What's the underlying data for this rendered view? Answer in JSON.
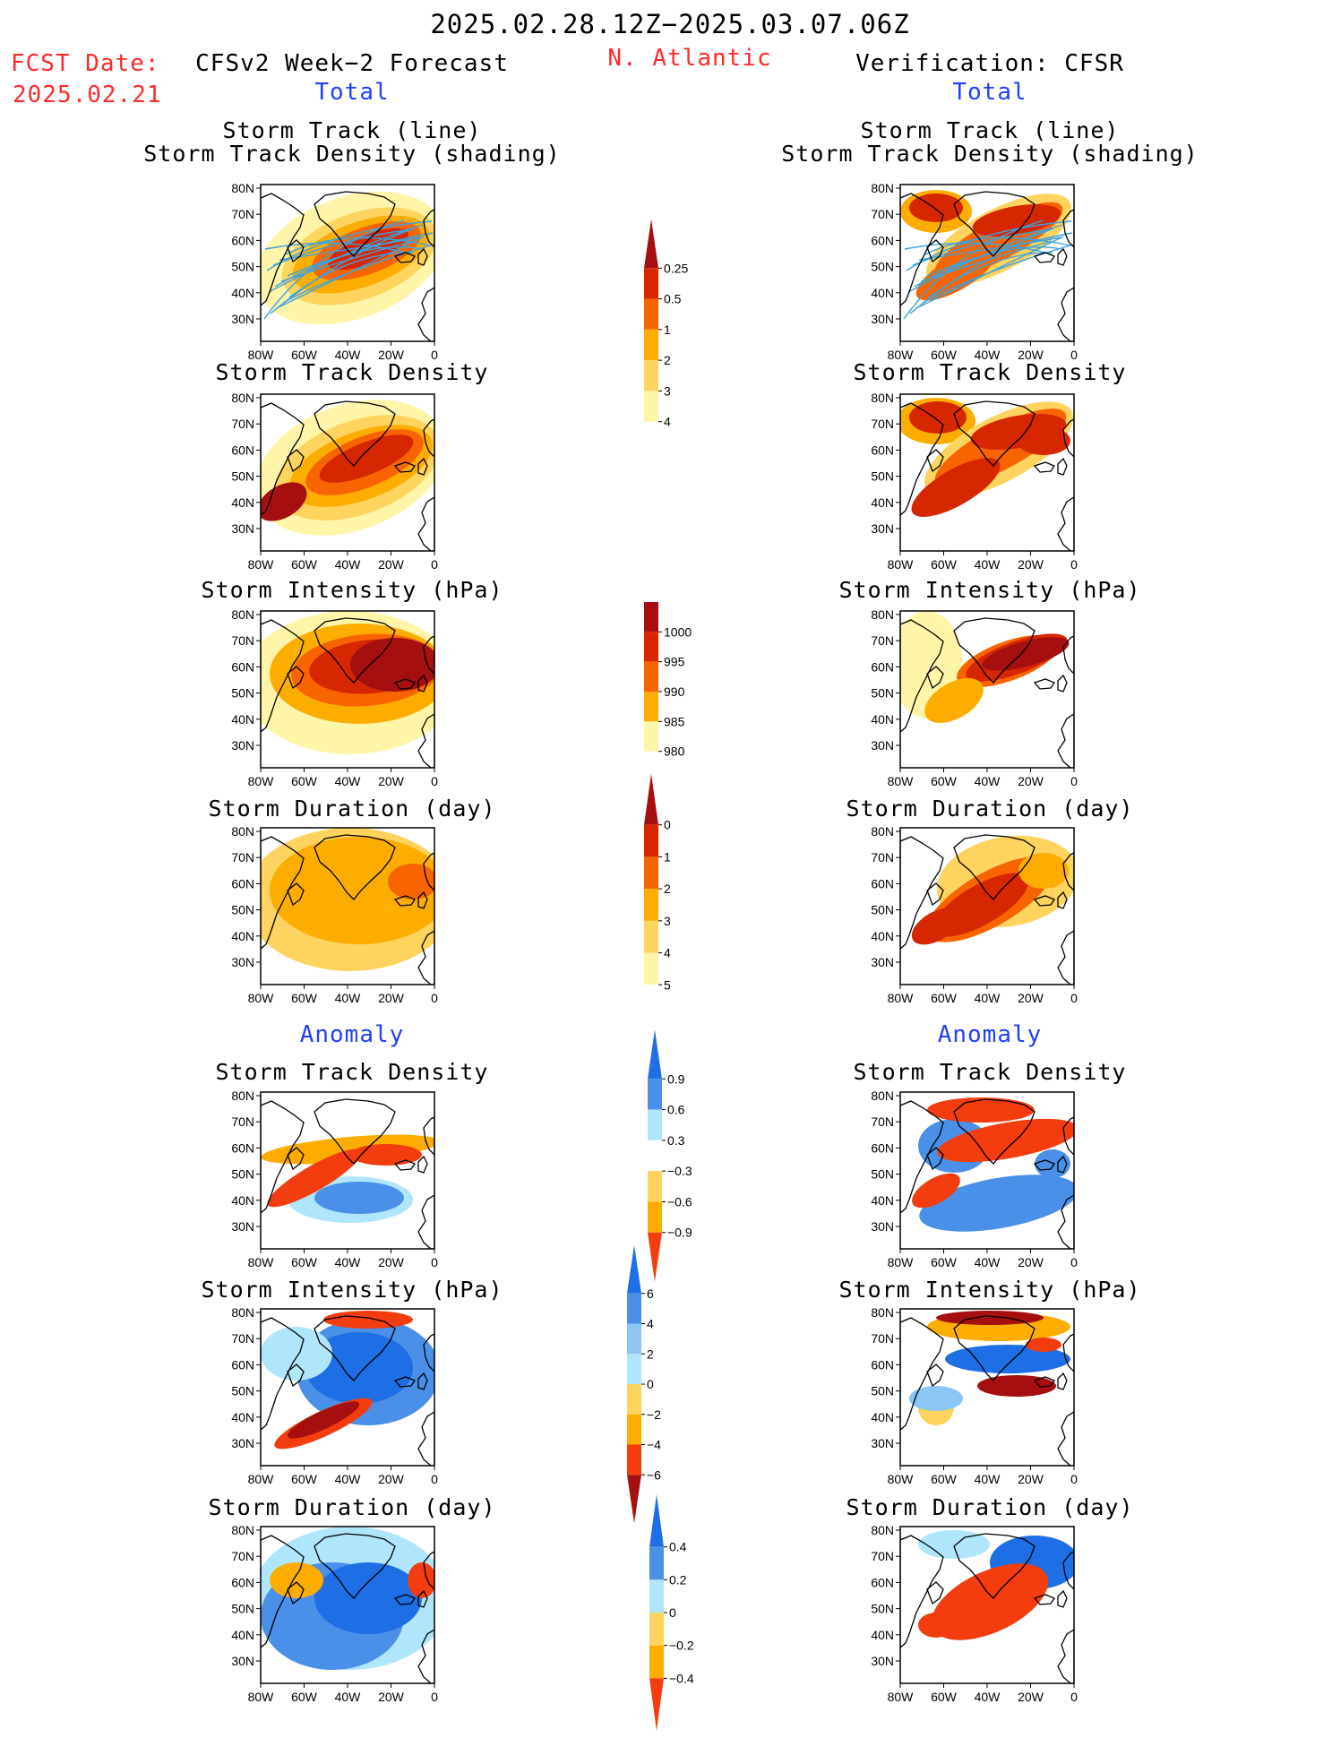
{
  "header": {
    "period": "2025.02.28.12Z−2025.03.07.06Z",
    "fcst_label": "FCST Date:",
    "fcst_date": "2025.02.21",
    "left_title": "CFSv2 Week−2 Forecast",
    "region": "N. Atlantic",
    "right_title": "Verification: CFSR"
  },
  "sections": {
    "total": "Total",
    "anomaly": "Anomaly"
  },
  "panels": {
    "track": [
      "Storm Track (line)",
      "Storm Track Density (shading)"
    ],
    "density": "Storm Track Density",
    "intensity": "Storm Intensity (hPa)",
    "duration": "Storm Duration (day)"
  },
  "axes": {
    "lat_ticks": [
      "80N",
      "70N",
      "60N",
      "50N",
      "40N",
      "30N"
    ],
    "lon_ticks": [
      "80W",
      "60W",
      "40W",
      "20W",
      "0"
    ]
  },
  "colorbars": {
    "density_total": {
      "levels": [
        "0.25",
        "0.5",
        "1",
        "2",
        "3",
        "4"
      ],
      "colors": [
        "#ffffff",
        "#fff5a8",
        "#fed35e",
        "#fdad00",
        "#f86500",
        "#d62700",
        "#a50f0f"
      ]
    },
    "intensity_total": {
      "levels": [
        "1000",
        "995",
        "990",
        "985",
        "980"
      ],
      "colors": [
        "#ffffff",
        "#fff5a8",
        "#fdad00",
        "#f86500",
        "#d62700",
        "#a50f0f"
      ]
    },
    "duration_total": {
      "levels": [
        "0",
        "1",
        "2",
        "3",
        "4",
        "5"
      ],
      "colors": [
        "#ffffff",
        "#fff5a8",
        "#fed35e",
        "#fdad00",
        "#f86500",
        "#d62700",
        "#a50f0f"
      ]
    },
    "density_anom": {
      "levels": [
        "0.9",
        "0.6",
        "0.3",
        "−0.3",
        "−0.6",
        "−0.9"
      ],
      "colors": [
        "#f43d0e",
        "#fdad00",
        "#fed35e",
        "#ffffff",
        "#b0e6fb",
        "#4a90e8",
        "#1e6fe6"
      ]
    },
    "intensity_anom": {
      "levels": [
        "6",
        "4",
        "2",
        "0",
        "−2",
        "−4",
        "−6"
      ],
      "colors": [
        "#a50f0f",
        "#f43d0e",
        "#fdad00",
        "#fed35e",
        "#b0e6fb",
        "#8cc6f5",
        "#4a90e8",
        "#1e6fe6"
      ]
    },
    "duration_anom": {
      "levels": [
        "0.4",
        "0.2",
        "0",
        "−0.2",
        "−0.4"
      ],
      "colors": [
        "#f43d0e",
        "#fdad00",
        "#fed35e",
        "#b0e6fb",
        "#4a90e8",
        "#1e6fe6"
      ]
    }
  },
  "map_style": {
    "ocean": "#ffffff",
    "coast": "#000000",
    "track_line": "#3ba3e0"
  }
}
